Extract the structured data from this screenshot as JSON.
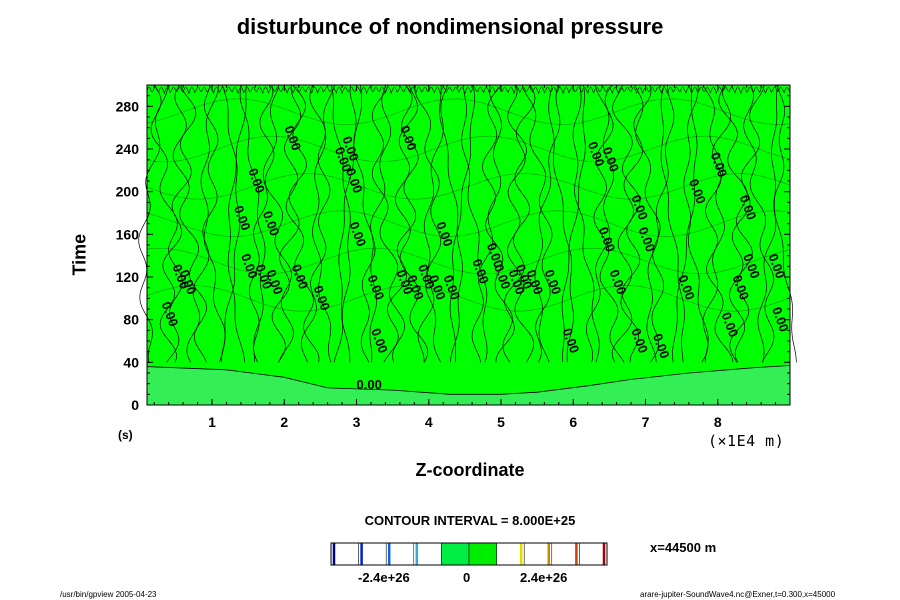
{
  "chart_data": {
    "type": "contour",
    "title": "disturbunce of nondimensional pressure",
    "xlabel": "Z-coordinate",
    "ylabel": "Time",
    "y_unit": "(s)",
    "x_scale_note": "(×1E4 m)",
    "x_ticks": [
      "1",
      "2",
      "3",
      "4",
      "5",
      "6",
      "7",
      "8"
    ],
    "y_ticks": [
      "0",
      "40",
      "80",
      "120",
      "160",
      "200",
      "240",
      "280"
    ],
    "xlim": [
      0.1,
      9.0
    ],
    "ylim": [
      0,
      300
    ],
    "contour_label": "0.00",
    "contour_interval_text": "CONTOUR INTERVAL = 8.000E+25",
    "position_text": "x=44500 m",
    "colorbar": {
      "tick_labels": [
        "-2.4e+26",
        "0",
        "2.4e+26"
      ],
      "colors": [
        "#ffffff",
        "#ffffff",
        "#ffffff",
        "#ffffff",
        "#00ee44",
        "#00ee00",
        "#ffffff",
        "#ffffff",
        "#ffffff",
        "#ffffff"
      ],
      "edge_colors": [
        "#000088",
        "#0022cc",
        "#1166dd",
        "#33aadd",
        "#00ee44",
        "#00ee00",
        "#dddd00",
        "#cc8800",
        "#cc4400",
        "#aa0000"
      ]
    },
    "colors": {
      "fill_main": "#00ff00",
      "fill_light": "#33ee55"
    }
  },
  "footer": {
    "left": "/usr/bin/gpview 2005-04-23",
    "right": "arare-jupiter-SoundWave4.nc@Exner,t=0.300,x=45000"
  }
}
